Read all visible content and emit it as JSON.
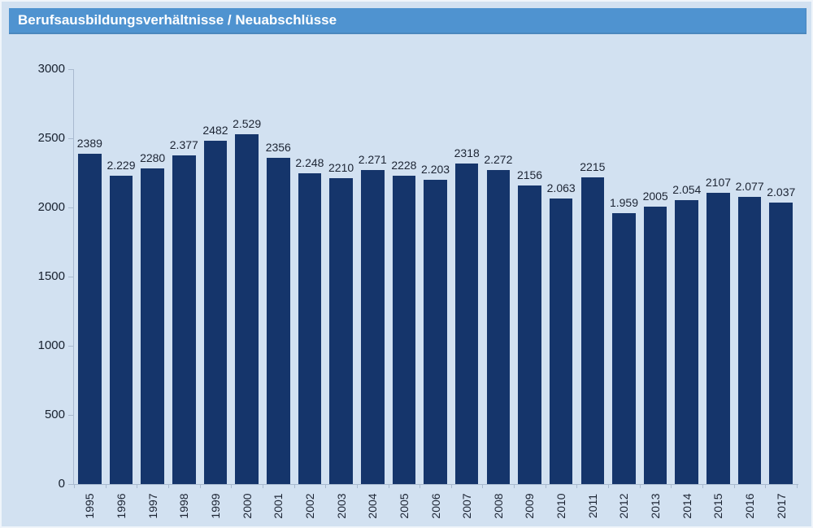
{
  "window": {
    "background": "#d2e1f1",
    "border": "#f0f5fb"
  },
  "header": {
    "title": "Berufsausbildungsverhältnisse / Neuabschlüsse",
    "background": "#4f93d0",
    "text_color": "#ffffff"
  },
  "chart_data": {
    "type": "bar",
    "title": "Berufsausbildungsverhältnisse / Neuabschlüsse",
    "categories": [
      "1995",
      "1996",
      "1997",
      "1998",
      "1999",
      "2000",
      "2001",
      "2002",
      "2003",
      "2004",
      "2005",
      "2006",
      "2007",
      "2008",
      "2009",
      "2010",
      "2011",
      "2012",
      "2013",
      "2014",
      "2015",
      "2016",
      "2017"
    ],
    "values": [
      2389,
      2229,
      2280,
      2377,
      2482,
      2529,
      2356,
      2248,
      2210,
      2271,
      2228,
      2203,
      2318,
      2272,
      2156,
      2063,
      2215,
      1959,
      2005,
      2054,
      2107,
      2077,
      2037
    ],
    "value_labels": [
      "2389",
      "2.229",
      "2280",
      "2.377",
      "2482",
      "2.529",
      "2356",
      "2.248",
      "2210",
      "2.271",
      "2228",
      "2.203",
      "2318",
      "2.272",
      "2156",
      "2.063",
      "2215",
      "1.959",
      "2005",
      "2.054",
      "2107",
      "2.077",
      "2.037"
    ],
    "xlabel": "",
    "ylabel": "",
    "ylim": [
      0,
      3000
    ],
    "yticks": [
      0,
      500,
      1000,
      1500,
      2000,
      2500,
      3000
    ],
    "grid": false,
    "legend": "none",
    "bar_color": "#15356b",
    "axis_color": "#a9bacf",
    "label_color": "#1c2433",
    "plot_background": "#d2e1f1"
  }
}
